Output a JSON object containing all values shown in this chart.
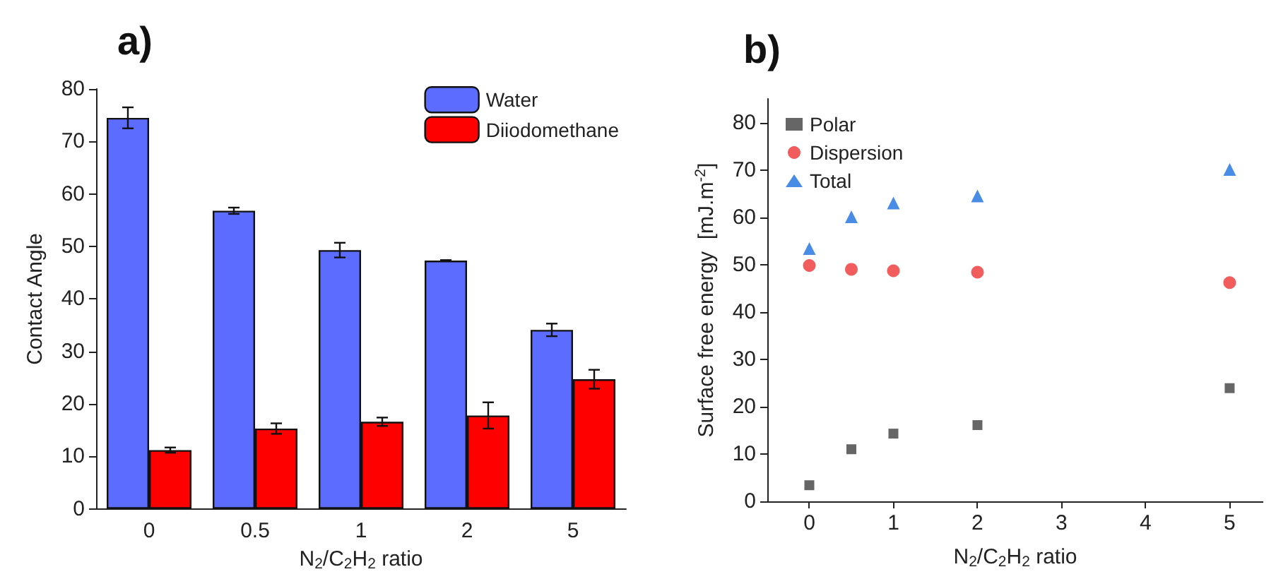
{
  "chart_data": [
    {
      "type": "bar",
      "title": "a)",
      "xlabel": "N$_{2}$/C$_{2}$H$_{2}$ ratio",
      "ylabel": "Contact Angle",
      "categories": [
        "0",
        "0.5",
        "1",
        "2",
        "5"
      ],
      "series": [
        {
          "name": "Water",
          "color": "#5b6cff",
          "values": [
            74.5,
            56.8,
            49.3,
            47.3,
            34.1
          ],
          "errors": [
            2.0,
            0.6,
            1.4,
            0.1,
            1.2
          ]
        },
        {
          "name": "Diiodomethane",
          "color": "#ff0000",
          "values": [
            11.2,
            15.3,
            16.6,
            17.8,
            24.7
          ],
          "errors": [
            0.5,
            1.0,
            0.8,
            2.5,
            1.8
          ]
        }
      ],
      "ylim": [
        0,
        80
      ],
      "yticks": [
        0,
        10,
        20,
        30,
        40,
        50,
        60,
        70,
        80
      ],
      "grid": false,
      "legend": "top right"
    },
    {
      "type": "scatter",
      "title": "b)",
      "xlabel": "N$_{2}$/C$_{2}$H$_{2}$ ratio",
      "ylabel": "Surface free energy  [mJ.m$^{-2}$]",
      "x": [
        0,
        0.5,
        1,
        2,
        5
      ],
      "series": [
        {
          "name": "Polar",
          "color": "#404040",
          "marker": "square",
          "values": [
            3.4,
            11,
            14.3,
            16.1,
            23.9
          ]
        },
        {
          "name": "Dispersion",
          "color": "#ee3333",
          "marker": "circle",
          "values": [
            49.8,
            49,
            48.7,
            48.4,
            46.2
          ]
        },
        {
          "name": "Total",
          "color": "#1a6fe0",
          "marker": "triangle",
          "values": [
            53.4,
            60.1,
            63,
            64.5,
            70.1
          ]
        }
      ],
      "xlim": [
        -0.5,
        5.4
      ],
      "xticks": [
        0,
        1,
        2,
        3,
        4,
        5
      ],
      "ylim": [
        0,
        85
      ],
      "yticks": [
        0,
        10,
        20,
        30,
        40,
        50,
        60,
        70,
        80
      ],
      "grid": false,
      "legend": "top left"
    }
  ]
}
